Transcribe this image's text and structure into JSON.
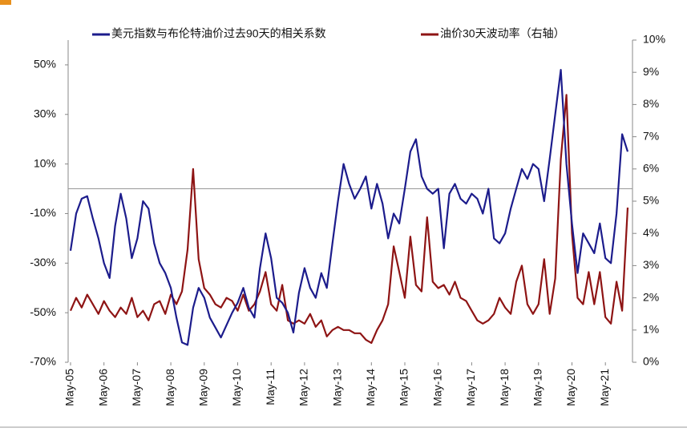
{
  "chart_data": {
    "type": "line",
    "categories": [
      "May-05",
      null,
      null,
      null,
      null,
      null,
      "May-06",
      null,
      null,
      null,
      null,
      null,
      "May-07",
      null,
      null,
      null,
      null,
      null,
      "May-08",
      null,
      null,
      null,
      null,
      null,
      "May-09",
      null,
      null,
      null,
      null,
      null,
      "May-10",
      null,
      null,
      null,
      null,
      null,
      "May-11",
      null,
      null,
      null,
      null,
      null,
      "May-12",
      null,
      null,
      null,
      null,
      null,
      "May-13",
      null,
      null,
      null,
      null,
      null,
      "May-14",
      null,
      null,
      null,
      null,
      null,
      "May-15",
      null,
      null,
      null,
      null,
      null,
      "May-16",
      null,
      null,
      null,
      null,
      null,
      "May-17",
      null,
      null,
      null,
      null,
      null,
      "May-18",
      null,
      null,
      null,
      null,
      null,
      "May-19",
      null,
      null,
      null,
      null,
      null,
      "May-20",
      null,
      null,
      null,
      null,
      null,
      "May-21",
      null,
      null,
      null,
      null
    ],
    "series": [
      {
        "name": "美元指数与布伦特油价过去90天的相关系数",
        "color": "#1c1c8c",
        "axis": "y",
        "values": [
          -25,
          -10,
          -4,
          -3,
          -12,
          -20,
          -30,
          -36,
          -15,
          -2,
          -12,
          -28,
          -20,
          -5,
          -8,
          -22,
          -30,
          -34,
          -40,
          -52,
          -62,
          -63,
          -48,
          -40,
          -44,
          -52,
          -56,
          -60,
          -55,
          -50,
          -46,
          -40,
          -48,
          -52,
          -32,
          -18,
          -28,
          -44,
          -46,
          -50,
          -58,
          -42,
          -32,
          -40,
          -44,
          -34,
          -40,
          -22,
          -5,
          10,
          2,
          -4,
          0,
          5,
          -8,
          2,
          -6,
          -20,
          -10,
          -14,
          0,
          15,
          20,
          5,
          0,
          -2,
          0,
          -24,
          -2,
          2,
          -4,
          -6,
          -2,
          -4,
          -10,
          0,
          -20,
          -22,
          -18,
          -8,
          0,
          8,
          4,
          10,
          8,
          -5,
          12,
          30,
          48,
          10,
          -14,
          -34,
          -18,
          -22,
          -26,
          -14,
          -28,
          -30,
          -10,
          22,
          15
        ]
      },
      {
        "name": "油价30天波动率（右轴）",
        "color": "#8e1414",
        "axis": "y2",
        "values": [
          1.6,
          2.0,
          1.7,
          2.1,
          1.8,
          1.5,
          1.9,
          1.6,
          1.4,
          1.7,
          1.5,
          2.0,
          1.4,
          1.6,
          1.3,
          1.8,
          1.9,
          1.5,
          2.1,
          1.8,
          2.2,
          3.5,
          6.0,
          3.2,
          2.3,
          2.1,
          1.8,
          1.7,
          2.0,
          1.9,
          1.6,
          2.1,
          1.6,
          1.8,
          2.2,
          2.8,
          1.8,
          1.6,
          2.4,
          1.3,
          1.2,
          1.3,
          1.2,
          1.5,
          1.1,
          1.3,
          0.8,
          1.0,
          1.1,
          1.0,
          1.0,
          0.9,
          0.9,
          0.7,
          0.6,
          1.0,
          1.3,
          1.8,
          3.6,
          2.8,
          2.0,
          3.9,
          2.4,
          2.2,
          4.5,
          2.5,
          2.3,
          2.4,
          2.1,
          2.5,
          2.0,
          1.9,
          1.6,
          1.3,
          1.2,
          1.3,
          1.5,
          2.0,
          1.7,
          1.5,
          2.5,
          3.0,
          1.8,
          1.5,
          1.8,
          3.2,
          1.5,
          2.6,
          6.3,
          8.3,
          4.0,
          2.0,
          1.8,
          2.8,
          1.8,
          2.8,
          1.4,
          1.2,
          2.5,
          1.6,
          4.8
        ]
      }
    ],
    "ylim": [
      -70,
      60
    ],
    "yticks": [
      {
        "value": 50,
        "label": "50%"
      },
      {
        "value": 30,
        "label": "30%"
      },
      {
        "value": 10,
        "label": "10%"
      },
      {
        "value": -10,
        "label": "-10%"
      },
      {
        "value": -30,
        "label": "-30%"
      },
      {
        "value": -50,
        "label": "-50%"
      },
      {
        "value": -70,
        "label": "-70%"
      }
    ],
    "y2lim": [
      0,
      10
    ],
    "y2ticks": [
      {
        "value": 0,
        "label": "0%"
      },
      {
        "value": 1,
        "label": "1%"
      },
      {
        "value": 2,
        "label": "2%"
      },
      {
        "value": 3,
        "label": "3%"
      },
      {
        "value": 4,
        "label": "4%"
      },
      {
        "value": 5,
        "label": "5%"
      },
      {
        "value": 6,
        "label": "6%"
      },
      {
        "value": 7,
        "label": "7%"
      },
      {
        "value": 8,
        "label": "8%"
      },
      {
        "value": 9,
        "label": "9%"
      },
      {
        "value": 10,
        "label": "10%"
      }
    ],
    "negative_tick_color": "#d01010",
    "legend": "top"
  }
}
